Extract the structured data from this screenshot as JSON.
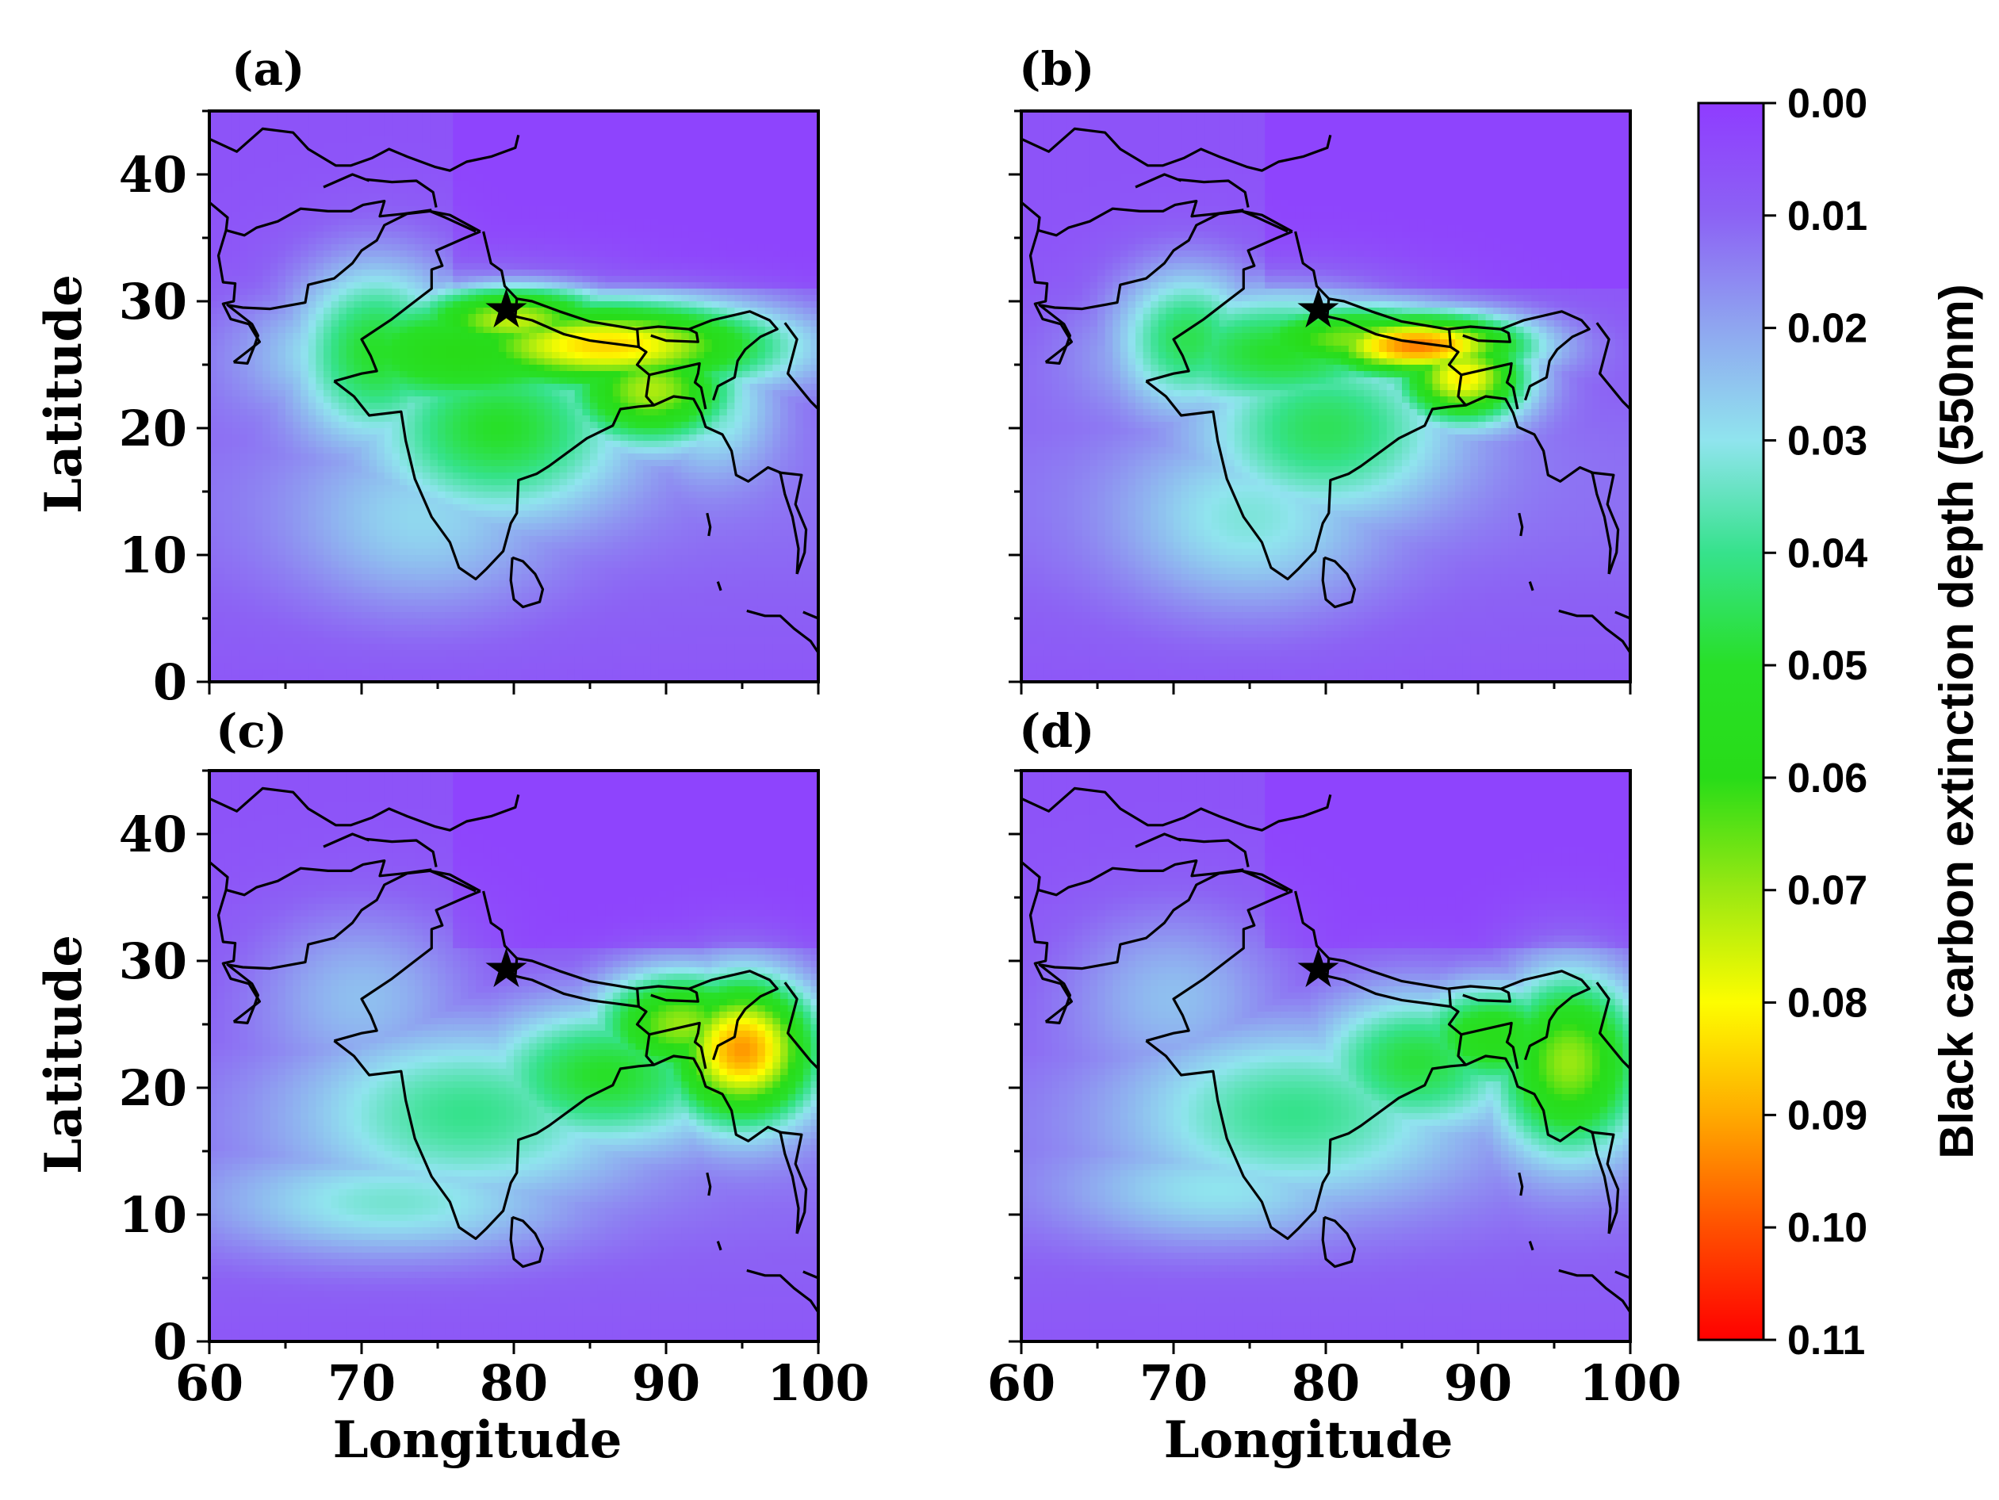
{
  "panels": [
    {
      "id": "a",
      "label": "(a)",
      "hotspots": [
        {
          "lon": 86,
          "lat": 26.5,
          "value": 0.085,
          "sx": 8,
          "sy": 2.5
        },
        {
          "lon": 80,
          "lat": 28.5,
          "value": 0.074,
          "sx": 5,
          "sy": 2
        },
        {
          "lon": 77,
          "lat": 26,
          "value": 0.06,
          "sx": 8,
          "sy": 3.5
        },
        {
          "lon": 71,
          "lat": 26,
          "value": 0.05,
          "sx": 4,
          "sy": 5
        },
        {
          "lon": 79,
          "lat": 20,
          "value": 0.05,
          "sx": 6,
          "sy": 5
        },
        {
          "lon": 89,
          "lat": 23,
          "value": 0.072,
          "sx": 4,
          "sy": 3
        },
        {
          "lon": 74,
          "lat": 13,
          "value": 0.028,
          "sx": 6,
          "sy": 5
        },
        {
          "lon": 93,
          "lat": 22,
          "value": 0.035,
          "sx": 3,
          "sy": 4
        }
      ]
    },
    {
      "id": "b",
      "label": "(b)",
      "hotspots": [
        {
          "lon": 86,
          "lat": 26.5,
          "value": 0.095,
          "sx": 5,
          "sy": 1.8
        },
        {
          "lon": 82,
          "lat": 27,
          "value": 0.068,
          "sx": 6,
          "sy": 2
        },
        {
          "lon": 89,
          "lat": 24,
          "value": 0.082,
          "sx": 3,
          "sy": 2.5
        },
        {
          "lon": 77,
          "lat": 26,
          "value": 0.05,
          "sx": 7,
          "sy": 3.5
        },
        {
          "lon": 71,
          "lat": 27,
          "value": 0.046,
          "sx": 3.5,
          "sy": 4
        },
        {
          "lon": 80,
          "lat": 20,
          "value": 0.045,
          "sx": 6,
          "sy": 5
        },
        {
          "lon": 75,
          "lat": 13,
          "value": 0.032,
          "sx": 6,
          "sy": 5
        }
      ]
    },
    {
      "id": "c",
      "label": "(c)",
      "hotspots": [
        {
          "lon": 95,
          "lat": 23,
          "value": 0.092,
          "sx": 3.5,
          "sy": 4
        },
        {
          "lon": 91,
          "lat": 25,
          "value": 0.07,
          "sx": 4,
          "sy": 3
        },
        {
          "lon": 86,
          "lat": 21,
          "value": 0.05,
          "sx": 6,
          "sy": 4
        },
        {
          "lon": 77,
          "lat": 18,
          "value": 0.04,
          "sx": 8,
          "sy": 5
        },
        {
          "lon": 72,
          "lat": 11,
          "value": 0.033,
          "sx": 8,
          "sy": 3
        },
        {
          "lon": 70,
          "lat": 27,
          "value": 0.024,
          "sx": 5,
          "sy": 5
        }
      ]
    },
    {
      "id": "d",
      "label": "(d)",
      "hotspots": [
        {
          "lon": 96,
          "lat": 22,
          "value": 0.07,
          "sx": 3.5,
          "sy": 5
        },
        {
          "lon": 91,
          "lat": 24,
          "value": 0.058,
          "sx": 4,
          "sy": 3
        },
        {
          "lon": 86,
          "lat": 22,
          "value": 0.048,
          "sx": 5,
          "sy": 4
        },
        {
          "lon": 78,
          "lat": 18,
          "value": 0.04,
          "sx": 8,
          "sy": 5
        },
        {
          "lon": 73,
          "lat": 12,
          "value": 0.03,
          "sx": 7,
          "sy": 3
        },
        {
          "lon": 70,
          "lat": 27,
          "value": 0.024,
          "sx": 5,
          "sy": 5
        }
      ]
    }
  ],
  "axes": {
    "xlabel": "Longitude",
    "ylabel": "Latitude",
    "xticks": [
      "60",
      "70",
      "80",
      "90",
      "100"
    ],
    "yticks": [
      "0",
      "10",
      "20",
      "30",
      "40"
    ],
    "xlim": [
      60,
      100
    ],
    "ylim": [
      0,
      45
    ]
  },
  "marker": {
    "lon": 79.5,
    "lat": 29.4,
    "symbol": "★"
  },
  "colorbar": {
    "label": "Black carbon extinction depth (550nm)",
    "ticks": [
      "0.00",
      "0.01",
      "0.02",
      "0.03",
      "0.04",
      "0.05",
      "0.06",
      "0.07",
      "0.08",
      "0.09",
      "0.10",
      "0.11"
    ],
    "range": [
      0,
      0.11
    ],
    "colors": [
      "#8f3cff",
      "#8c62f4",
      "#8fa6f0",
      "#90e4ee",
      "#36e28c",
      "#28e028",
      "#28dc18",
      "#9ae812",
      "#fdfd00",
      "#ffaa00",
      "#ff5000",
      "#ff0000"
    ]
  }
}
